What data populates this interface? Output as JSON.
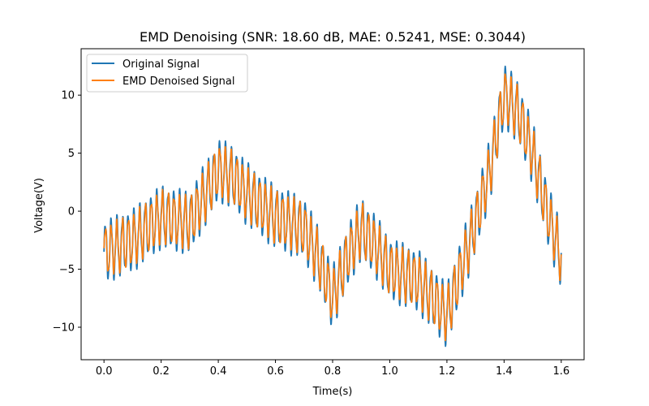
{
  "chart_data": {
    "type": "line",
    "title": "EMD Denoising (SNR: 18.60 dB, MAE: 0.5241, MSE: 0.3044)",
    "xlabel": "Time(s)",
    "ylabel": "Voltage(V)",
    "xlim": [
      -0.08,
      1.68
    ],
    "ylim": [
      -12.8,
      14.0
    ],
    "xticks": [
      0.0,
      0.2,
      0.4,
      0.6,
      0.8,
      1.0,
      1.2,
      1.4,
      1.6
    ],
    "xtick_labels": [
      "0.0",
      "0.2",
      "0.4",
      "0.6",
      "0.8",
      "1.0",
      "1.2",
      "1.4",
      "1.6"
    ],
    "yticks": [
      -10,
      -5,
      0,
      5,
      10
    ],
    "ytick_labels": [
      "−10",
      "−5",
      "0",
      "5",
      "10"
    ],
    "grid": false,
    "legend_position": "upper-left",
    "x": [
      0.0,
      0.1,
      0.2,
      0.3,
      0.4,
      0.45,
      0.5,
      0.6,
      0.7,
      0.75,
      0.8,
      0.85,
      0.9,
      0.95,
      1.0,
      1.1,
      1.15,
      1.2,
      1.25,
      1.3,
      1.35,
      1.4,
      1.45,
      1.5,
      1.55,
      1.6
    ],
    "series": [
      {
        "name": "Original Signal",
        "color": "#1f77b4",
        "trend": [
          -3.5,
          -2.5,
          -0.5,
          -1.0,
          3.5,
          3.0,
          1.5,
          -0.5,
          -1.5,
          -4.0,
          -7.5,
          -4.0,
          -1.5,
          -3.0,
          -5.0,
          -6.0,
          -7.5,
          -9.0,
          -5.0,
          -1.0,
          3.5,
          10.0,
          8.5,
          5.0,
          0.0,
          -4.0
        ],
        "amplitude": 2.8
      },
      {
        "name": "EMD Denoised Signal",
        "color": "#ff7f0e",
        "trend": [
          -3.5,
          -2.5,
          -0.5,
          -1.0,
          3.5,
          3.0,
          1.5,
          -0.5,
          -1.5,
          -4.0,
          -7.5,
          -4.0,
          -1.5,
          -3.0,
          -5.0,
          -6.0,
          -7.5,
          -9.0,
          -5.0,
          -1.0,
          3.5,
          10.0,
          8.5,
          5.0,
          0.0,
          -4.0
        ],
        "amplitude": 2.4
      }
    ]
  }
}
